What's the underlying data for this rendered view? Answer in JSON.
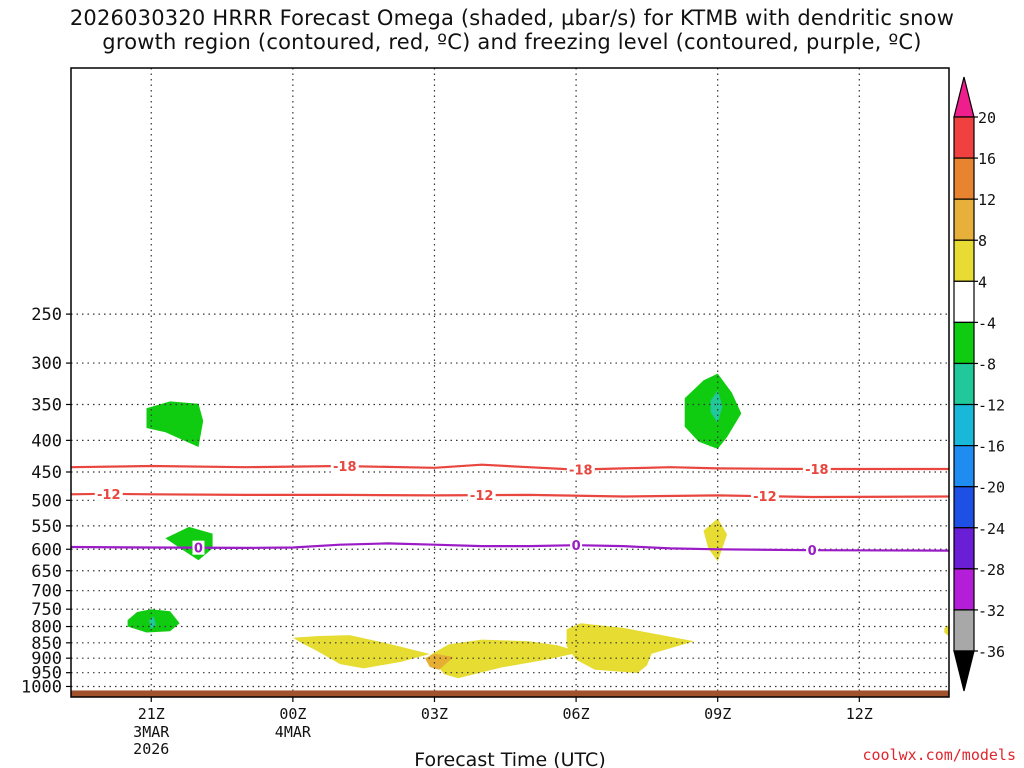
{
  "title": {
    "line1": "2026030320 HRRR Forecast Omega (shaded, µbar/s) for KTMB with dendritic snow",
    "line2": "growth region (contoured, red, ºC) and freezing level (contoured, purple, ºC)"
  },
  "credit": "coolwx.com/models",
  "chart_data": {
    "type": "time-height cross section",
    "xlabel": "Forecast Time (UTC)",
    "ylabel": "",
    "x_range_hours": [
      19.3,
      37.9
    ],
    "y_range_hpa": [
      100,
      1040
    ],
    "y_scale": "log-pressure",
    "grid": true,
    "x_ticks": [
      {
        "hour": 21,
        "label": "21Z",
        "sub": [
          "3MAR",
          "2026"
        ]
      },
      {
        "hour": 24,
        "label": "00Z",
        "sub": [
          "4MAR"
        ]
      },
      {
        "hour": 27,
        "label": "03Z",
        "sub": []
      },
      {
        "hour": 30,
        "label": "06Z",
        "sub": []
      },
      {
        "hour": 33,
        "label": "09Z",
        "sub": []
      },
      {
        "hour": 36,
        "label": "12Z",
        "sub": []
      }
    ],
    "y_ticks": [
      250,
      300,
      350,
      400,
      450,
      500,
      550,
      600,
      650,
      700,
      750,
      800,
      850,
      900,
      950,
      1000
    ],
    "surface_pressure_hpa": 1015,
    "surface_color": "#a0522d",
    "contours": [
      {
        "name": "-18",
        "color": "#e8463e",
        "points": [
          [
            19.3,
            442
          ],
          [
            21,
            440
          ],
          [
            23,
            442
          ],
          [
            25,
            440
          ],
          [
            27,
            443
          ],
          [
            28,
            438
          ],
          [
            29,
            442
          ],
          [
            30,
            446
          ],
          [
            31,
            444
          ],
          [
            32,
            442
          ],
          [
            33,
            444
          ],
          [
            35,
            445
          ],
          [
            37.9,
            445
          ]
        ],
        "labels": [
          {
            "hour": 25.1,
            "text": "-18"
          },
          {
            "hour": 30.1,
            "text": "-18"
          },
          {
            "hour": 35.1,
            "text": "-18"
          }
        ]
      },
      {
        "name": "-12",
        "color": "#e8463e",
        "points": [
          [
            19.3,
            489
          ],
          [
            20,
            488
          ],
          [
            21,
            489
          ],
          [
            23,
            490
          ],
          [
            25,
            490
          ],
          [
            27,
            491
          ],
          [
            29,
            490
          ],
          [
            31,
            493
          ],
          [
            33,
            491
          ],
          [
            35,
            494
          ],
          [
            37.9,
            493
          ]
        ],
        "labels": [
          {
            "hour": 20.1,
            "text": "-12"
          },
          {
            "hour": 28.0,
            "text": "-12"
          },
          {
            "hour": 34.0,
            "text": "-12"
          }
        ]
      },
      {
        "name": "0",
        "color": "#9b1bc7",
        "points": [
          [
            19.3,
            595
          ],
          [
            21,
            596
          ],
          [
            23,
            597
          ],
          [
            24,
            596
          ],
          [
            25,
            590
          ],
          [
            26,
            587
          ],
          [
            27,
            590
          ],
          [
            28,
            593
          ],
          [
            29,
            593
          ],
          [
            30,
            591
          ],
          [
            31,
            593
          ],
          [
            32,
            598
          ],
          [
            33,
            600
          ],
          [
            35,
            602
          ],
          [
            37.9,
            603
          ]
        ],
        "labels": [
          {
            "hour": 22.0,
            "text": "0"
          },
          {
            "hour": 30.0,
            "text": "0"
          },
          {
            "hour": 35.0,
            "text": "0"
          }
        ]
      }
    ],
    "shaded_regions": [
      {
        "level": "-8",
        "color": "#10cc10",
        "points": [
          [
            20.9,
            355
          ],
          [
            21.4,
            346
          ],
          [
            22.0,
            349
          ],
          [
            22.1,
            372
          ],
          [
            22.0,
            410
          ],
          [
            21.3,
            388
          ],
          [
            20.9,
            382
          ]
        ]
      },
      {
        "level": "-8",
        "color": "#10cc10",
        "points": [
          [
            32.3,
            342
          ],
          [
            32.7,
            320
          ],
          [
            33.0,
            312
          ],
          [
            33.3,
            335
          ],
          [
            33.5,
            362
          ],
          [
            33.2,
            395
          ],
          [
            33.0,
            413
          ],
          [
            32.6,
            402
          ],
          [
            32.3,
            380
          ]
        ]
      },
      {
        "level": "-12",
        "color": "#20c89a",
        "points": [
          [
            32.85,
            345
          ],
          [
            33.0,
            332
          ],
          [
            33.1,
            352
          ],
          [
            33.0,
            375
          ],
          [
            32.85,
            360
          ]
        ]
      },
      {
        "level": "-8",
        "color": "#10cc10",
        "points": [
          [
            21.3,
            576
          ],
          [
            21.8,
            552
          ],
          [
            22.3,
            566
          ],
          [
            22.3,
            598
          ],
          [
            22.0,
            625
          ],
          [
            21.7,
            604
          ]
        ]
      },
      {
        "level": "-8",
        "color": "#10cc10",
        "points": [
          [
            20.5,
            781
          ],
          [
            20.7,
            758
          ],
          [
            21.0,
            750
          ],
          [
            21.4,
            756
          ],
          [
            21.6,
            790
          ],
          [
            21.4,
            814
          ],
          [
            20.9,
            818
          ],
          [
            20.5,
            800
          ]
        ]
      },
      {
        "level": "-12",
        "color": "#20c89a",
        "points": [
          [
            20.95,
            782
          ],
          [
            21.05,
            770
          ],
          [
            21.1,
            796
          ],
          [
            21.0,
            808
          ]
        ]
      },
      {
        "level": "4",
        "color": "#e6dc32",
        "points": [
          [
            32.7,
            560
          ],
          [
            33.0,
            535
          ],
          [
            33.2,
            568
          ],
          [
            33.0,
            628
          ],
          [
            32.8,
            598
          ]
        ]
      },
      {
        "level": "4",
        "color": "#e6dc32",
        "points": [
          [
            24.0,
            834
          ],
          [
            24.5,
            829
          ],
          [
            25.2,
            826
          ],
          [
            26.0,
            852
          ],
          [
            26.9,
            886
          ],
          [
            26.3,
            912
          ],
          [
            25.5,
            935
          ],
          [
            25.0,
            920
          ],
          [
            24.5,
            875
          ],
          [
            24.2,
            852
          ]
        ]
      },
      {
        "level": "4",
        "color": "#e6dc32",
        "points": [
          [
            26.9,
            890
          ],
          [
            27.3,
            855
          ],
          [
            28.0,
            840
          ],
          [
            29.0,
            845
          ],
          [
            29.6,
            858
          ],
          [
            30.1,
            880
          ],
          [
            29.4,
            904
          ],
          [
            28.4,
            932
          ],
          [
            27.5,
            970
          ],
          [
            27.2,
            955
          ]
        ]
      },
      {
        "level": "8",
        "color": "#e6ae32",
        "points": [
          [
            26.8,
            900
          ],
          [
            27.0,
            885
          ],
          [
            27.4,
            896
          ],
          [
            27.1,
            940
          ],
          [
            26.9,
            930
          ]
        ]
      },
      {
        "level": "4",
        "color": "#e6dc32",
        "points": [
          [
            29.8,
            808
          ],
          [
            30.1,
            790
          ],
          [
            31.0,
            804
          ],
          [
            32.5,
            845
          ],
          [
            31.6,
            885
          ],
          [
            31.5,
            925
          ],
          [
            31.3,
            951
          ],
          [
            30.4,
            940
          ],
          [
            30.0,
            905
          ],
          [
            29.8,
            860
          ]
        ]
      },
      {
        "level": "4",
        "color": "#e6dc32",
        "points": [
          [
            37.8,
            805
          ],
          [
            37.9,
            795
          ],
          [
            37.9,
            830
          ],
          [
            37.8,
            818
          ]
        ]
      }
    ],
    "colorbar": {
      "labels": [
        "20",
        "16",
        "12",
        "8",
        "4",
        "-4",
        "-8",
        "-12",
        "-16",
        "-20",
        "-24",
        "-28",
        "-32",
        "-36"
      ],
      "colors": [
        "#ee1e8c",
        "#f04040",
        "#e88430",
        "#e6b03a",
        "#e8dc34",
        "#ffffff",
        "#10cc10",
        "#20c89a",
        "#1ab8d8",
        "#1e8cf0",
        "#1e50e6",
        "#6a1ed6",
        "#b41ed8",
        "#a8a8a8",
        "#000000"
      ]
    }
  }
}
